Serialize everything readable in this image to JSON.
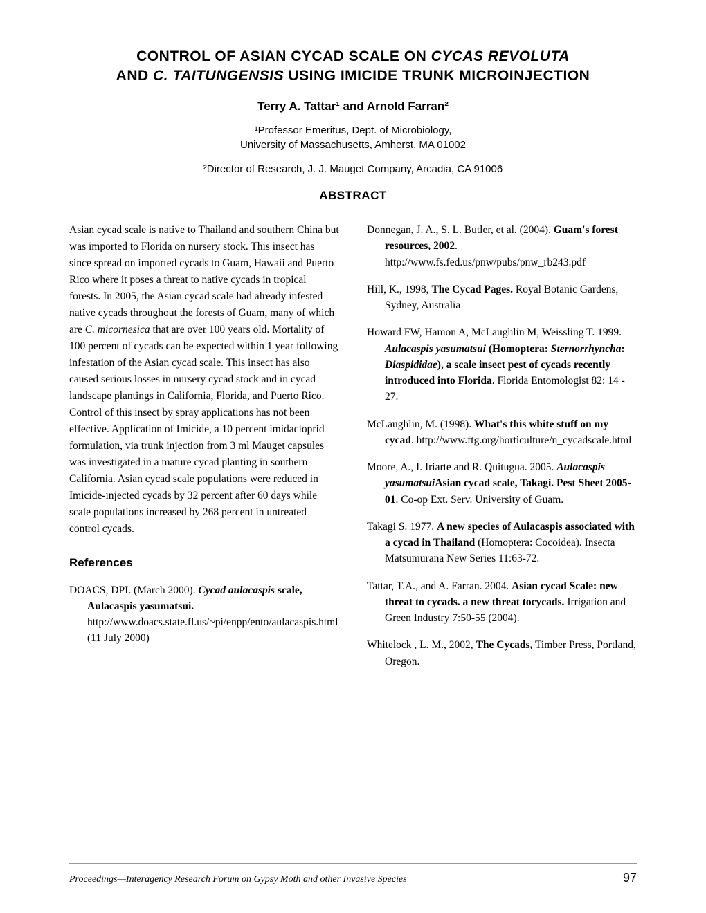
{
  "title": {
    "line1_pre": "CONTROL OF ASIAN CYCAD SCALE ON ",
    "line1_italic": "CYCAS REVOLUTA",
    "line2_pre": "AND ",
    "line2_italic": "C. TAITUNGENSIS",
    "line2_post": " USING IMICIDE TRUNK MICROINJECTION"
  },
  "authors": "Terry A. Tattar¹ and Arnold Farran²",
  "affiliation1_line1": "¹Professor Emeritus, Dept. of Microbiology,",
  "affiliation1_line2": "University of Massachusetts, Amherst, MA 01002",
  "affiliation2": "²Director of Research, J. J. Mauget Company, Arcadia, CA 91006",
  "abstract_heading": "ABSTRACT",
  "abstract": {
    "part1": "Asian cycad scale is native to Thailand and southern China but was imported to Florida on nursery stock. This insect has since spread on imported cycads to Guam, Hawaii and Puerto Rico where it poses a threat to native cycads in tropical forests. In 2005, the Asian cycad scale had already infested native cycads throughout the forests of Guam, many of which are ",
    "italic1": "C. micornesica",
    "part2": " that are over 100 years old. Mortality of 100 percent of cycads can be expected within 1 year following infestation of the Asian cycad scale. This insect has also caused serious losses in nursery cycad stock and in cycad landscape plantings in California, Florida, and Puerto Rico. Control of this insect by spray applications has not been effective. Application of Imicide, a 10 percent imidacloprid formulation, via trunk injection from 3 ml Mauget capsules was investigated in a mature cycad planting in southern California. Asian cycad scale populations were reduced in Imicide-injected cycads by 32 percent after 60 days while scale populations increased by 268 percent in untreated control cycads."
  },
  "references_heading": "References",
  "refs_left": [
    {
      "pre": "DOACS, DPI. (March 2000). ",
      "bold_italic": "Cycad aulacaspis",
      "bold": " scale, Aulacaspis yasumatsui.",
      "post": " http://www.doacs.state.fl.us/~pi/enpp/ento/aulacaspis.html (11 July 2000)"
    }
  ],
  "refs_right": [
    {
      "pre": "Donnegan, J. A., S. L. Butler, et al. (2004). ",
      "bold": "Guam's forest resources, 2002",
      "post": ". http://www.fs.fed.us/pnw/pubs/pnw_rb243.pdf"
    },
    {
      "pre": "Hill, K., 1998, ",
      "bold": "The Cycad Pages.",
      "post": " Royal Botanic Gardens, Sydney, Australia"
    },
    {
      "pre": "Howard FW, Hamon A, McLaughlin M, Weissling T. 1999. ",
      "bold_italic": "Aulacaspis yasumatsui",
      "bold_pre": " (Homoptera: ",
      "bold_italic2": "Sternorrhyncha",
      "bold_mid": ": ",
      "bold_italic3": "Diaspididae",
      "bold_post": "), a scale insect pest of cycads recently introduced into Florida",
      "post": ". Florida Entomologist 82: 14 - 27."
    },
    {
      "pre": "McLaughlin, M. (1998). ",
      "bold": "What's this white stuff on my cycad",
      "post": ". http://www.ftg.org/horticulture/n_cycadscale.html"
    },
    {
      "pre": "Moore, A., I. Iriarte and R. Quitugua. 2005. ",
      "bold_pre": "Asian cycad scale, ",
      "bold_italic": "Aulacaspis yasumatsui",
      "bold_post": " Takagi. Pest Sheet 2005-01",
      "post": ". Co-op Ext. Serv. University of Guam."
    },
    {
      "pre": "Takagi S. 1977. ",
      "bold": "A new species of Aulacaspis associated with a cycad in Thailand",
      "post": " (Homoptera: Cocoidea). Insecta Matsumurana New Series 11:63-72."
    },
    {
      "pre": "Tattar, T.A., and A. Farran. 2004. ",
      "bold": "Asian cycad Scale: new threat to cycads. a new threat tocycads.",
      "post": " Irrigation and Green Industry 7:50-55 (2004)."
    },
    {
      "pre": "Whitelock , L. M., 2002, ",
      "bold": "The Cycads,",
      "post": " Timber Press, Portland, Oregon."
    }
  ],
  "footer_text": "Proceedings—Interagency Research Forum on Gypsy Moth and other Invasive Species",
  "page_number": "97"
}
